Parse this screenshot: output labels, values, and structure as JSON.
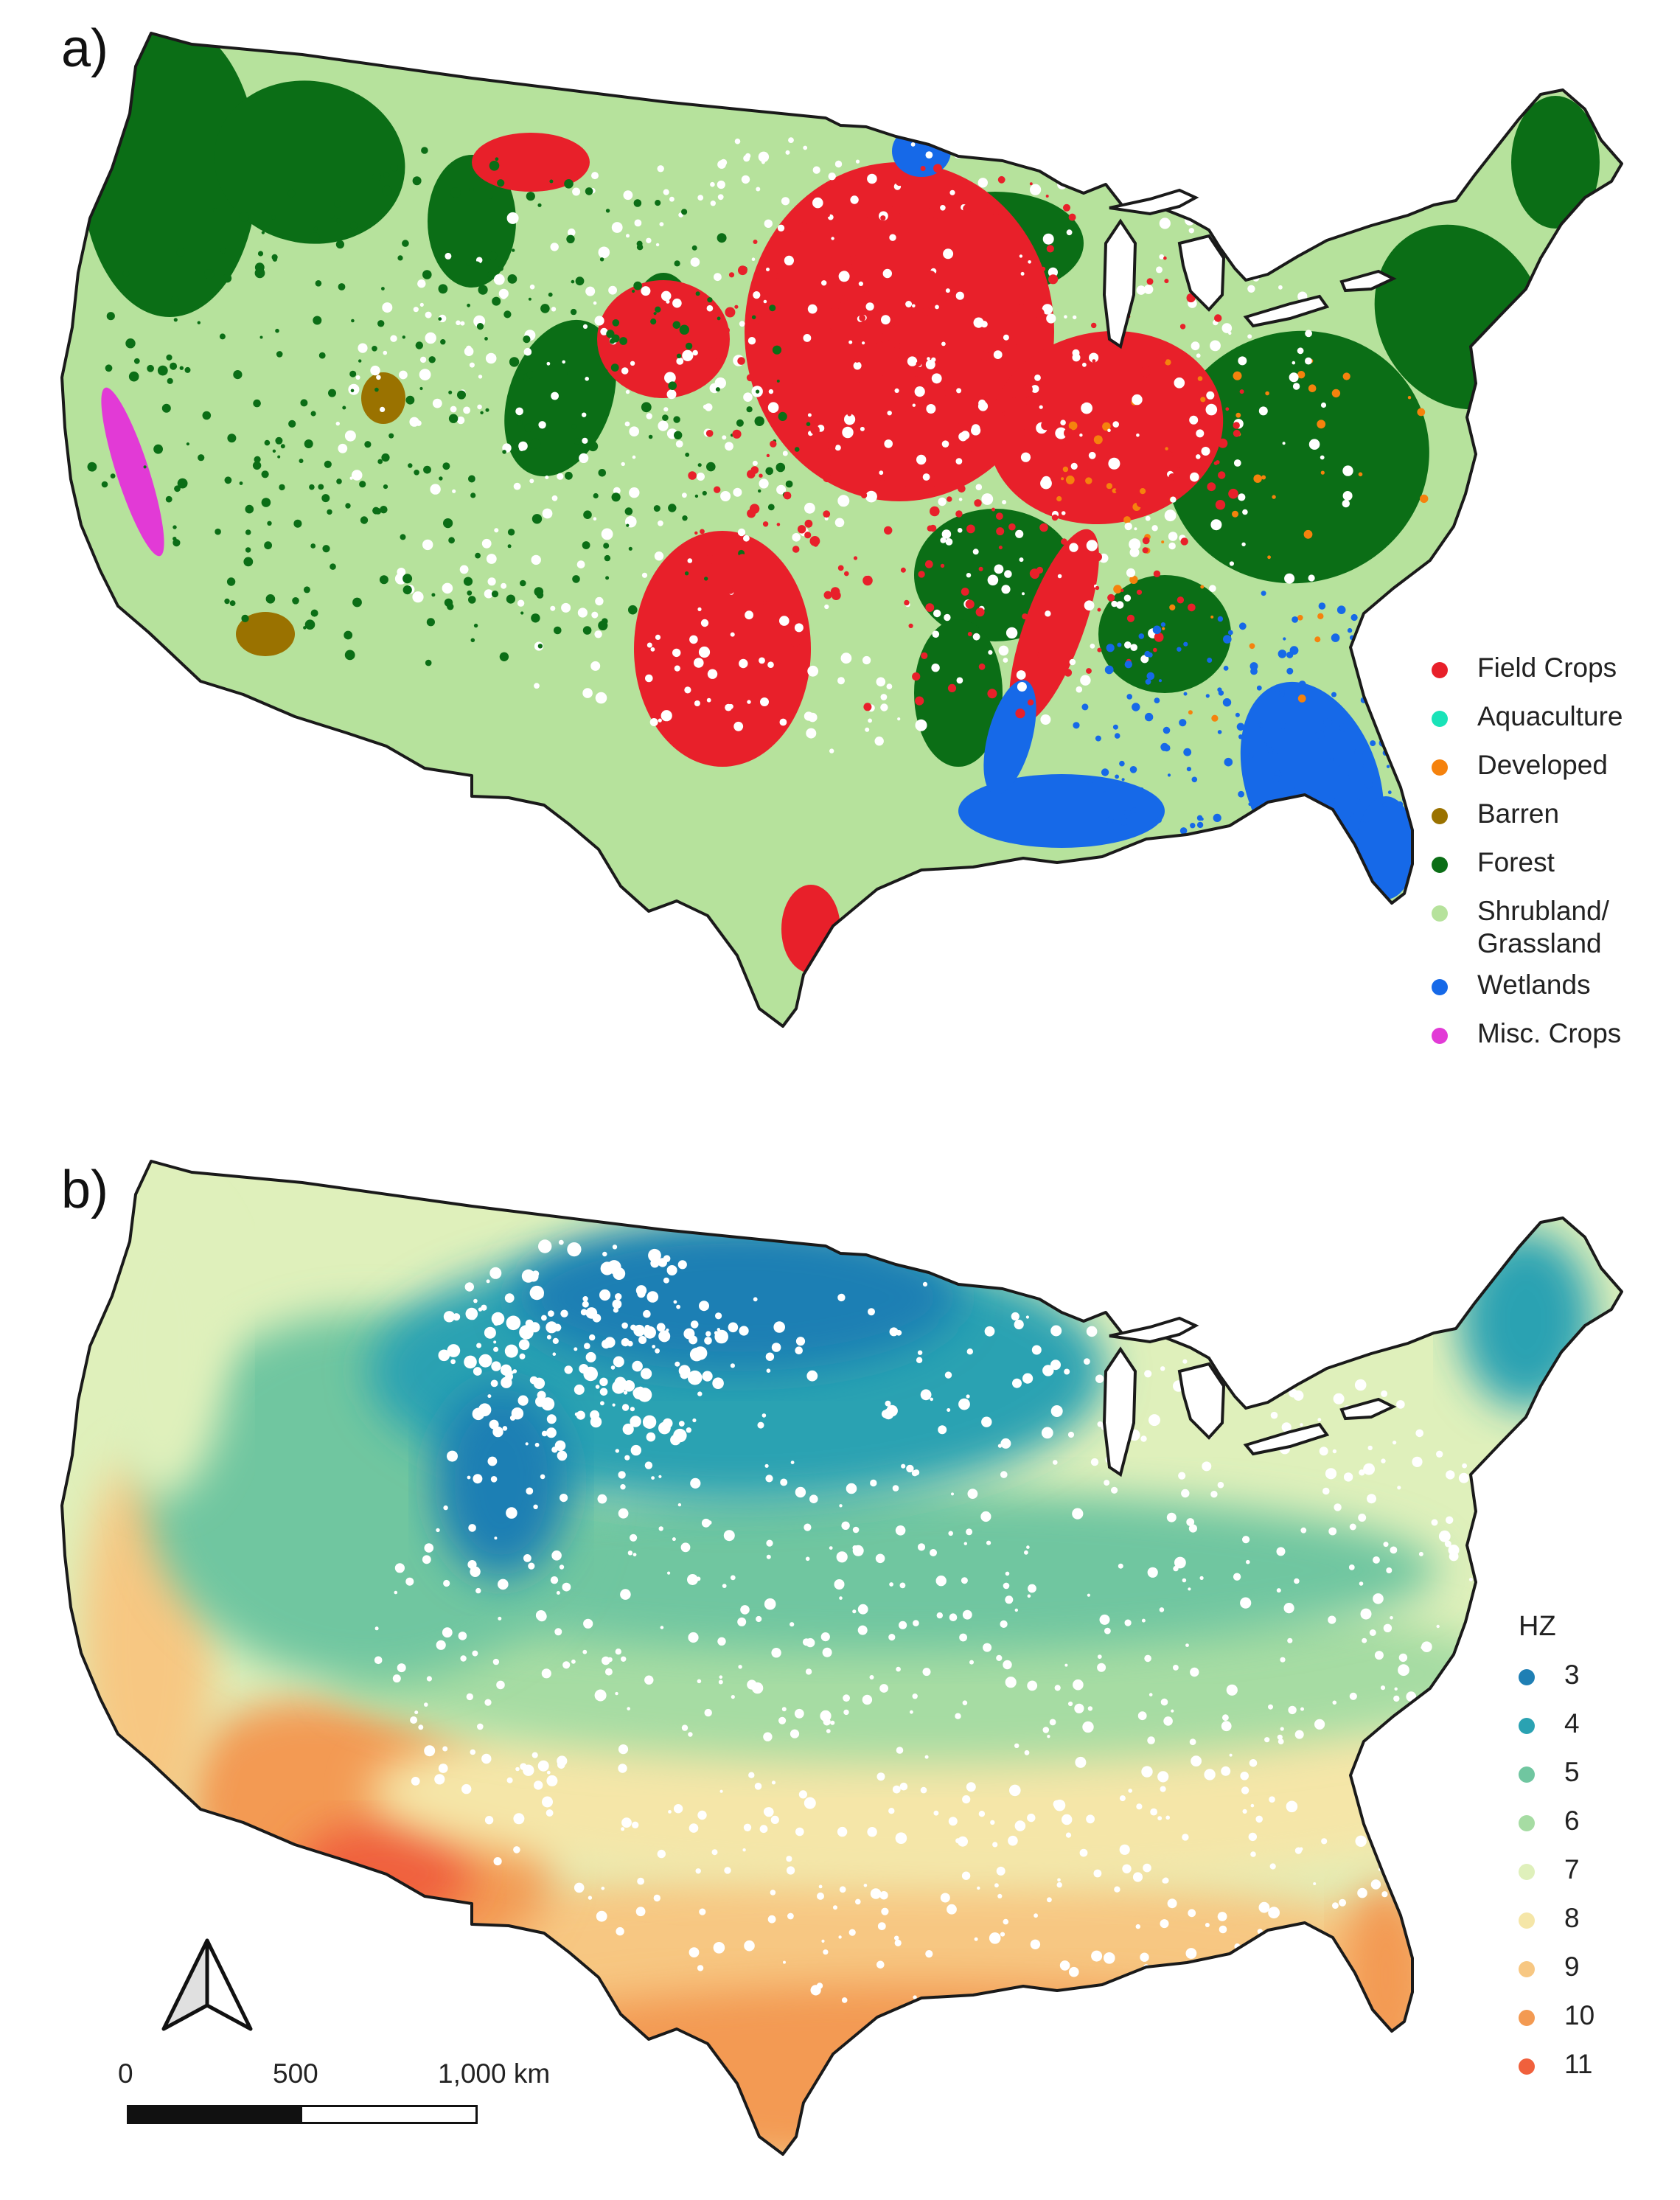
{
  "panels": {
    "a": {
      "label": "a)"
    },
    "b": {
      "label": "b)"
    }
  },
  "legend_a": {
    "items": [
      {
        "label": "Field Crops",
        "color": "#e8202a"
      },
      {
        "label": "Aquaculture",
        "color": "#19e3b8"
      },
      {
        "label": "Developed",
        "color": "#f5820d"
      },
      {
        "label": "Barren",
        "color": "#9a7200"
      },
      {
        "label": "Forest",
        "color": "#0b6e16"
      },
      {
        "label": "Shrubland/\nGrassland",
        "color": "#b6e29c"
      },
      {
        "label": "Wetlands",
        "color": "#1669e8"
      },
      {
        "label": "Misc. Crops",
        "color": "#e23ad6"
      }
    ]
  },
  "legend_b": {
    "title": "HZ",
    "items": [
      {
        "label": "3",
        "color": "#1f7fb4"
      },
      {
        "label": "4",
        "color": "#2aa2b2"
      },
      {
        "label": "5",
        "color": "#70c6a0"
      },
      {
        "label": "6",
        "color": "#a6dca3"
      },
      {
        "label": "7",
        "color": "#dff0bb"
      },
      {
        "label": "8",
        "color": "#f5e6a8"
      },
      {
        "label": "9",
        "color": "#f7c782"
      },
      {
        "label": "10",
        "color": "#f39a52"
      },
      {
        "label": "11",
        "color": "#f0603c"
      }
    ]
  },
  "scale_bar": {
    "labels": [
      "0",
      "500",
      "1,000 km"
    ]
  },
  "north_arrow": {
    "icon": "north-arrow-icon"
  }
}
